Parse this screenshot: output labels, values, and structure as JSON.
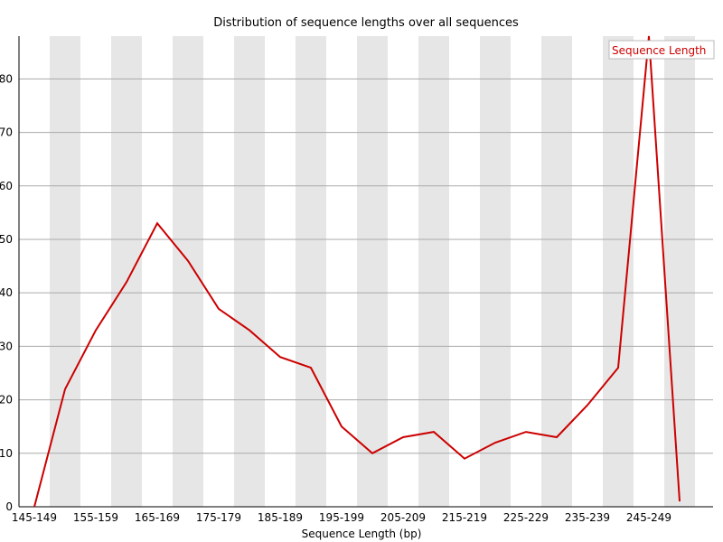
{
  "chart_data": {
    "type": "line",
    "title": "Distribution of sequence lengths over all sequences",
    "xlabel": "Sequence Length (bp)",
    "ylabel": "",
    "x_tick_labels": [
      "145-149",
      "155-159",
      "165-169",
      "175-179",
      "185-189",
      "195-199",
      "205-209",
      "215-219",
      "225-229",
      "235-239",
      "245-249"
    ],
    "x": [
      144,
      146,
      148,
      150,
      152,
      154,
      156,
      158,
      160,
      162,
      164,
      166,
      168,
      170,
      172,
      174,
      176,
      178,
      180,
      182,
      184,
      186,
      188,
      190,
      192,
      194,
      196,
      198,
      200,
      202,
      204,
      206,
      208,
      210,
      212,
      214,
      216,
      218,
      220,
      222,
      224,
      226,
      228,
      230,
      232,
      234,
      236,
      238,
      240,
      242,
      244,
      246,
      248,
      250,
      252,
      254,
      256
    ],
    "xlim": [
      144,
      256
    ],
    "ylim": [
      0,
      88
    ],
    "y_ticks": [
      0,
      10,
      20,
      30,
      40,
      50,
      60,
      70,
      80
    ],
    "series": [
      {
        "name": "Sequence Length",
        "color": "#cc0000",
        "points": [
          {
            "x": "145-149",
            "y": 0
          },
          {
            "x": "150-154",
            "y": 22
          },
          {
            "x": "155-159",
            "y": 33
          },
          {
            "x": "160-164",
            "y": 42
          },
          {
            "x": "165-169",
            "y": 53
          },
          {
            "x": "170-174",
            "y": 46
          },
          {
            "x": "175-179",
            "y": 37
          },
          {
            "x": "180-184",
            "y": 33
          },
          {
            "x": "185-189",
            "y": 28
          },
          {
            "x": "190-194",
            "y": 26
          },
          {
            "x": "195-199",
            "y": 15
          },
          {
            "x": "200-204",
            "y": 10
          },
          {
            "x": "205-209",
            "y": 13
          },
          {
            "x": "210-214",
            "y": 14
          },
          {
            "x": "215-219",
            "y": 9
          },
          {
            "x": "220-224",
            "y": 12
          },
          {
            "x": "225-229",
            "y": 14
          },
          {
            "x": "230-234",
            "y": 13
          },
          {
            "x": "235-239",
            "y": 19
          },
          {
            "x": "240-244",
            "y": 26
          },
          {
            "x": "245-249",
            "y": 88
          },
          {
            "x": "250-254",
            "y": 1
          }
        ]
      }
    ],
    "grid": true,
    "legend_position": "top-right",
    "band_color": "#e6e6e6",
    "grid_color": "#aaaaaa"
  }
}
